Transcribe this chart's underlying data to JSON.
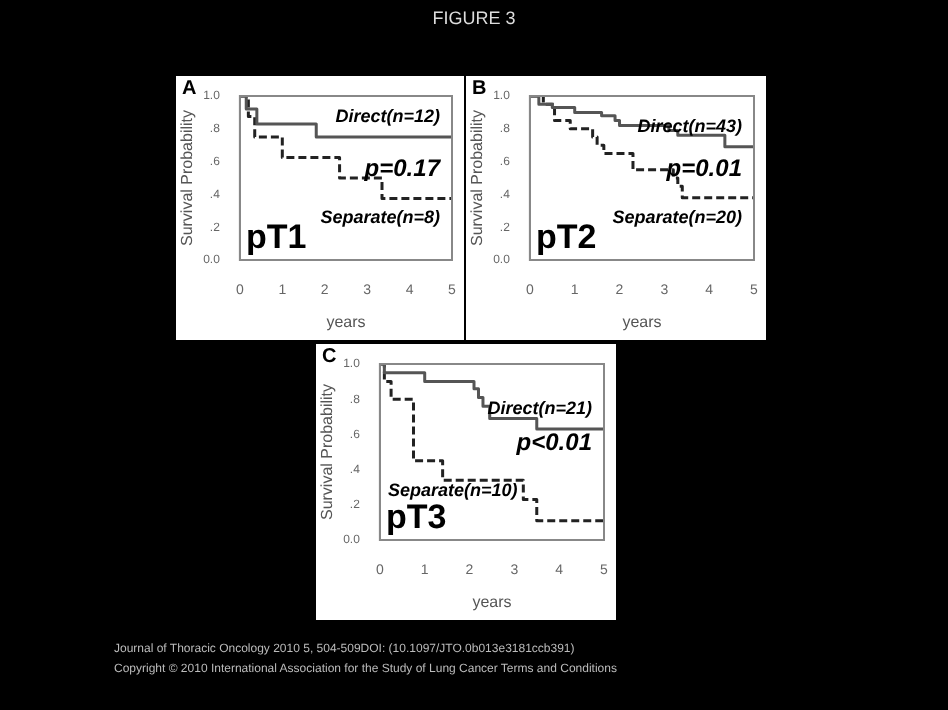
{
  "chart_data": [
    {
      "type": "other",
      "title": "FIGURE 3",
      "annotations": [
        "Journal of Thoracic Oncology 2010 5, 504-509DOI: (10.1097/JTO.0b013e3181ccb391)",
        "Copyright © 2010 International Association for the Study of Lung Cancer Terms and Conditions"
      ]
    },
    {
      "type": "step",
      "title": "A",
      "xlabel": "years",
      "ylabel": "Survival Probability",
      "xlim": [
        0,
        5
      ],
      "xticks": [
        0,
        1,
        2,
        3,
        4,
        5
      ],
      "ylim": [
        0,
        1
      ],
      "yticks": [
        {
          "value": 0,
          "label": "0.0"
        },
        {
          "value": 0.2,
          "label": ".2"
        },
        {
          "value": 0.4,
          "label": ".4"
        },
        {
          "value": 0.6,
          "label": ".6"
        },
        {
          "value": 0.8,
          "label": ".8"
        },
        {
          "value": 1,
          "label": "1.0"
        }
      ],
      "grid": false,
      "legend": false,
      "marker": "none",
      "annotations": [
        "pT1",
        "p=0.17"
      ],
      "series": [
        {
          "name": "Direct(n=12)",
          "color": "#555555",
          "line_style": "solid",
          "x": [
            0,
            0.15,
            0.4,
            1.8,
            5
          ],
          "values": [
            1,
            0.92,
            0.83,
            0.75,
            0.75
          ]
        },
        {
          "name": "Separate(n=8)",
          "color": "#222222",
          "line_style": "dashed",
          "x": [
            0,
            0.2,
            0.35,
            1.0,
            2.35,
            3.35,
            5
          ],
          "values": [
            1,
            0.875,
            0.75,
            0.625,
            0.5,
            0.375,
            0.375
          ]
        }
      ]
    },
    {
      "type": "step",
      "title": "B",
      "xlabel": "years",
      "ylabel": "Survival Probability",
      "xlim": [
        0,
        5
      ],
      "xticks": [
        0,
        1,
        2,
        3,
        4,
        5
      ],
      "ylim": [
        0,
        1
      ],
      "yticks": [
        {
          "value": 0,
          "label": "0.0"
        },
        {
          "value": 0.2,
          "label": ".2"
        },
        {
          "value": 0.4,
          "label": ".4"
        },
        {
          "value": 0.6,
          "label": ".6"
        },
        {
          "value": 0.8,
          "label": ".8"
        },
        {
          "value": 1,
          "label": "1.0"
        }
      ],
      "grid": false,
      "legend": false,
      "marker": "none",
      "annotations": [
        "pT2",
        "p=0.01"
      ],
      "series": [
        {
          "name": "Direct(n=43)",
          "color": "#555555",
          "line_style": "solid",
          "x": [
            0,
            0.2,
            0.5,
            1.0,
            1.6,
            1.9,
            2.0,
            3.1,
            3.3,
            4.35,
            5
          ],
          "values": [
            1,
            0.95,
            0.93,
            0.9,
            0.88,
            0.85,
            0.82,
            0.79,
            0.76,
            0.69,
            0.69
          ]
        },
        {
          "name": "Separate(n=20)",
          "color": "#222222",
          "line_style": "dashed",
          "x": [
            0,
            0.3,
            0.55,
            0.9,
            1.4,
            1.5,
            1.65,
            2.3,
            3.2,
            3.3,
            3.4,
            5
          ],
          "values": [
            1,
            0.95,
            0.85,
            0.8,
            0.75,
            0.7,
            0.65,
            0.55,
            0.5,
            0.45,
            0.38,
            0.38
          ]
        }
      ]
    },
    {
      "type": "step",
      "title": "C",
      "xlabel": "years",
      "ylabel": "Survival Probability",
      "xlim": [
        0,
        5
      ],
      "xticks": [
        0,
        1,
        2,
        3,
        4,
        5
      ],
      "ylim": [
        0,
        1
      ],
      "yticks": [
        {
          "value": 0,
          "label": "0.0"
        },
        {
          "value": 0.2,
          "label": ".2"
        },
        {
          "value": 0.4,
          "label": ".4"
        },
        {
          "value": 0.6,
          "label": ".6"
        },
        {
          "value": 0.8,
          "label": ".8"
        },
        {
          "value": 1,
          "label": "1.0"
        }
      ],
      "grid": false,
      "legend": false,
      "marker": "none",
      "annotations": [
        "pT3",
        "p<0.01"
      ],
      "series": [
        {
          "name": "Direct(n=21)",
          "color": "#555555",
          "line_style": "solid",
          "x": [
            0,
            0.1,
            1.0,
            2.1,
            2.2,
            2.3,
            2.45,
            3.5,
            5
          ],
          "values": [
            1,
            0.95,
            0.9,
            0.86,
            0.81,
            0.76,
            0.69,
            0.63,
            0.63
          ]
        },
        {
          "name": "Separate(n=10)",
          "color": "#222222",
          "line_style": "dashed",
          "x": [
            0,
            0.1,
            0.25,
            0.75,
            1.4,
            3.2,
            3.5,
            5
          ],
          "values": [
            1,
            0.9,
            0.8,
            0.45,
            0.34,
            0.23,
            0.11,
            0.11
          ]
        }
      ]
    }
  ]
}
